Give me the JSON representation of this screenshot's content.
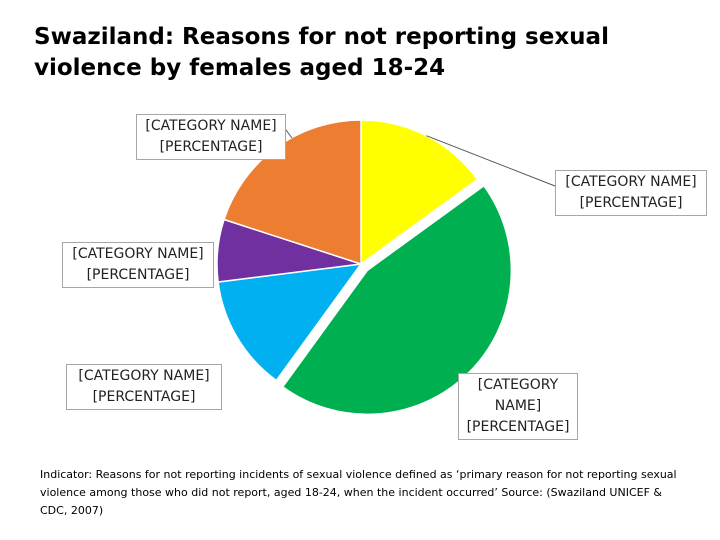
{
  "slide": {
    "title": "Swaziland: Reasons for not reporting sexual violence by females aged 18-24",
    "footnote": "Indicator: Reasons for not reporting incidents of sexual violence defined as ‘primary reason for not reporting sexual violence among those who did not report, aged 18-24, when the incident occurred’ Source: (Swaziland UNICEF & CDC, 2007)"
  },
  "chart_data": {
    "type": "pie",
    "title": "Swaziland: Reasons for not reporting sexual violence by females aged 18-24",
    "start_angle_deg": 0,
    "direction": "clockwise",
    "slices": [
      {
        "label": "[CATEGORY NAME]",
        "value_label": "[PERCENTAGE]",
        "value": 15,
        "color": "#FFFF00",
        "exploded": false
      },
      {
        "label": "[CATEGORY NAME]",
        "value_label": "[PERCENTAGE]",
        "value": 45,
        "color": "#00B050",
        "exploded": true
      },
      {
        "label": "[CATEGORY",
        "label_line2": "NAME]",
        "value_label": "[PERCENTAGE]",
        "value": 13,
        "color": "#00B0F0",
        "exploded": false
      },
      {
        "label": "[CATEGORY NAME]",
        "value_label": "[PERCENTAGE]",
        "value": 7,
        "color": "#7030A0",
        "exploded": false
      },
      {
        "label": "[CATEGORY NAME]",
        "value_label": "[PERCENTAGE]",
        "value": 20,
        "color": "#ED7D31",
        "exploded": false
      }
    ],
    "legend": "none",
    "slice_border_color": "#ffffff"
  }
}
